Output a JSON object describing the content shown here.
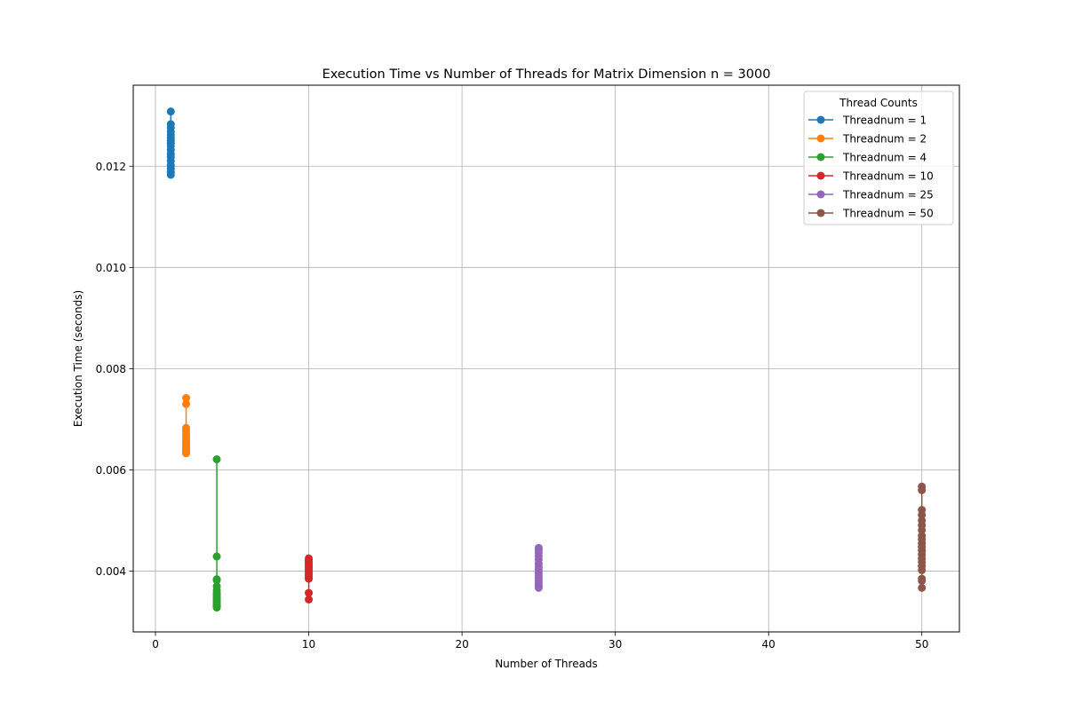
{
  "chart_data": {
    "type": "scatter",
    "title": "Execution Time vs Number of Threads for Matrix Dimension n = 3000",
    "xlabel": "Number of Threads",
    "ylabel": "Execution Time (seconds)",
    "xlim": [
      -1.45,
      52.45
    ],
    "ylim": [
      0.0028,
      0.0136
    ],
    "xticks": [
      0,
      10,
      20,
      30,
      40,
      50
    ],
    "yticks": [
      0.004,
      0.006,
      0.008,
      0.01,
      0.012
    ],
    "xtick_labels": [
      "0",
      "10",
      "20",
      "30",
      "40",
      "50"
    ],
    "ytick_labels": [
      "0.004",
      "0.006",
      "0.008",
      "0.010",
      "0.012"
    ],
    "grid": true,
    "legend": {
      "title": "Thread Counts",
      "position": "top-right"
    },
    "series": [
      {
        "name": "Threadnum = 1",
        "color": "#1f77b4",
        "x": 1,
        "values": [
          0.01308,
          0.01283,
          0.01276,
          0.01268,
          0.01262,
          0.01256,
          0.0125,
          0.01245,
          0.0124,
          0.01232,
          0.01224,
          0.01218,
          0.0121,
          0.01202,
          0.01195,
          0.01188,
          0.01183
        ]
      },
      {
        "name": "Threadnum = 2",
        "color": "#ff7f0e",
        "x": 2,
        "values": [
          0.00742,
          0.0073,
          0.00683,
          0.00677,
          0.0067,
          0.00664,
          0.00659,
          0.00655,
          0.00651,
          0.00647,
          0.00643,
          0.0064,
          0.00637,
          0.00634,
          0.00633
        ]
      },
      {
        "name": "Threadnum = 4",
        "color": "#2ca02c",
        "x": 4,
        "values": [
          0.00621,
          0.00429,
          0.00384,
          0.00382,
          0.0037,
          0.00362,
          0.00356,
          0.00352,
          0.00348,
          0.00344,
          0.00341,
          0.00338,
          0.00335,
          0.00332,
          0.0033,
          0.00328
        ]
      },
      {
        "name": "Threadnum = 10",
        "color": "#d62728",
        "x": 10,
        "values": [
          0.00425,
          0.00421,
          0.00417,
          0.00413,
          0.0041,
          0.00407,
          0.00404,
          0.00401,
          0.00398,
          0.00395,
          0.00392,
          0.00388,
          0.00385,
          0.00357,
          0.00344
        ]
      },
      {
        "name": "Threadnum = 25",
        "color": "#9467bd",
        "x": 25,
        "values": [
          0.00446,
          0.00442,
          0.00437,
          0.0043,
          0.00423,
          0.00415,
          0.00409,
          0.00403,
          0.00397,
          0.00391,
          0.00386,
          0.00381,
          0.00377,
          0.00373,
          0.0037,
          0.00367
        ]
      },
      {
        "name": "Threadnum = 50",
        "color": "#8c564b",
        "x": 50,
        "values": [
          0.00567,
          0.0056,
          0.00521,
          0.00511,
          0.005,
          0.00491,
          0.00481,
          0.0047,
          0.00463,
          0.00455,
          0.00448,
          0.00441,
          0.00433,
          0.00425,
          0.00418,
          0.0041,
          0.00402,
          0.00385,
          0.00381,
          0.00367
        ]
      }
    ]
  }
}
